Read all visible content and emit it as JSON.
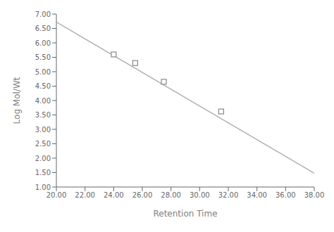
{
  "chart_data": {
    "type": "scatter",
    "xlabel": "Retention Time",
    "ylabel": "Log Mol/Wt",
    "xlim": [
      20.0,
      38.0
    ],
    "ylim": [
      1.0,
      7.0
    ],
    "xticks": [
      {
        "value": 20.0,
        "label": "20.00"
      },
      {
        "value": 22.0,
        "label": "22.00"
      },
      {
        "value": 24.0,
        "label": "24.00"
      },
      {
        "value": 26.0,
        "label": "26.00"
      },
      {
        "value": 28.0,
        "label": "28.00"
      },
      {
        "value": 30.0,
        "label": "30.00"
      },
      {
        "value": 32.0,
        "label": "32.00"
      },
      {
        "value": 34.0,
        "label": "34.00"
      },
      {
        "value": 36.0,
        "label": "36.00"
      },
      {
        "value": 38.0,
        "label": "38.00"
      }
    ],
    "yticks": [
      {
        "value": 1.0,
        "label": "1.00"
      },
      {
        "value": 1.5,
        "label": "1.50"
      },
      {
        "value": 2.0,
        "label": "2.00"
      },
      {
        "value": 2.5,
        "label": "2.50"
      },
      {
        "value": 3.0,
        "label": "3.00"
      },
      {
        "value": 3.5,
        "label": "3.50"
      },
      {
        "value": 4.0,
        "label": "4.00"
      },
      {
        "value": 4.5,
        "label": "4.50"
      },
      {
        "value": 5.0,
        "label": "5.00"
      },
      {
        "value": 5.5,
        "label": "5.50"
      },
      {
        "value": 6.0,
        "label": "6.00"
      },
      {
        "value": 6.5,
        "label": "6.50"
      },
      {
        "value": 7.0,
        "label": "7.00"
      }
    ],
    "grid": false,
    "series": [
      {
        "type": "line",
        "x": [
          20.0,
          38.0
        ],
        "values": [
          6.72,
          1.48
        ],
        "color": "#b0b0b0"
      },
      {
        "type": "scatter",
        "x": [
          24.0,
          25.5,
          27.5,
          31.5
        ],
        "values": [
          5.6,
          5.3,
          4.65,
          3.62
        ],
        "color": "#888888",
        "marker": "square"
      }
    ]
  }
}
